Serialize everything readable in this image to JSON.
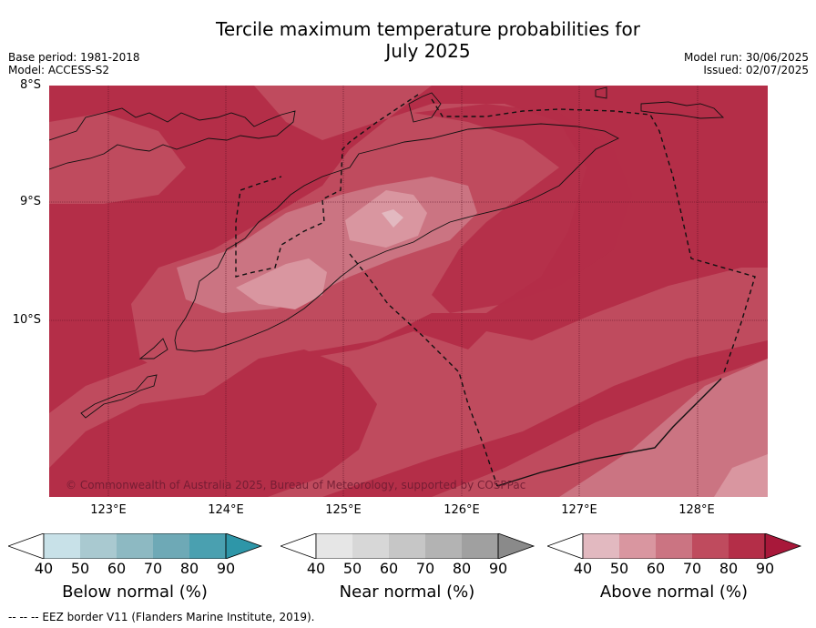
{
  "title_line1": "Tercile maximum temperature probabilities for",
  "title_line2": "July 2025",
  "meta": {
    "base_period": "Base period: 1981-2018",
    "model": "Model: ACCESS-S2",
    "model_run": "Model run: 30/06/2025",
    "issued": "Issued: 02/07/2025"
  },
  "lat_labels": [
    "8°S",
    "9°S",
    "10°S"
  ],
  "lon_labels": [
    "123°E",
    "124°E",
    "125°E",
    "126°E",
    "127°E",
    "128°E"
  ],
  "copyright": "© Commonwealth of Australia 2025, Bureau of Meteorology, supported by COSPPac",
  "colorbars": [
    {
      "title": "Below normal (%)",
      "ticks": [
        "40",
        "50",
        "60",
        "70",
        "80",
        "90"
      ],
      "colors": [
        "#ffffff",
        "#c8e1e8",
        "#a9c9d0",
        "#8db9c2",
        "#6ea9b6",
        "#4aa0b0",
        "#2e96a8"
      ]
    },
    {
      "title": "Near normal (%)",
      "ticks": [
        "40",
        "50",
        "60",
        "70",
        "80",
        "90"
      ],
      "colors": [
        "#ffffff",
        "#e6e6e6",
        "#d7d7d7",
        "#c6c6c6",
        "#b3b3b3",
        "#a0a0a0",
        "#8a8a8a"
      ]
    },
    {
      "title": "Above normal (%)",
      "ticks": [
        "40",
        "50",
        "60",
        "70",
        "80",
        "90"
      ],
      "colors": [
        "#ffffff",
        "#e2b9c0",
        "#d996a0",
        "#cb7482",
        "#bf4b5e",
        "#b42e48",
        "#a8183a"
      ]
    }
  ],
  "footnote": "--  --  -- EEZ border V11 (Flanders Marine Institute, 2019)."
}
